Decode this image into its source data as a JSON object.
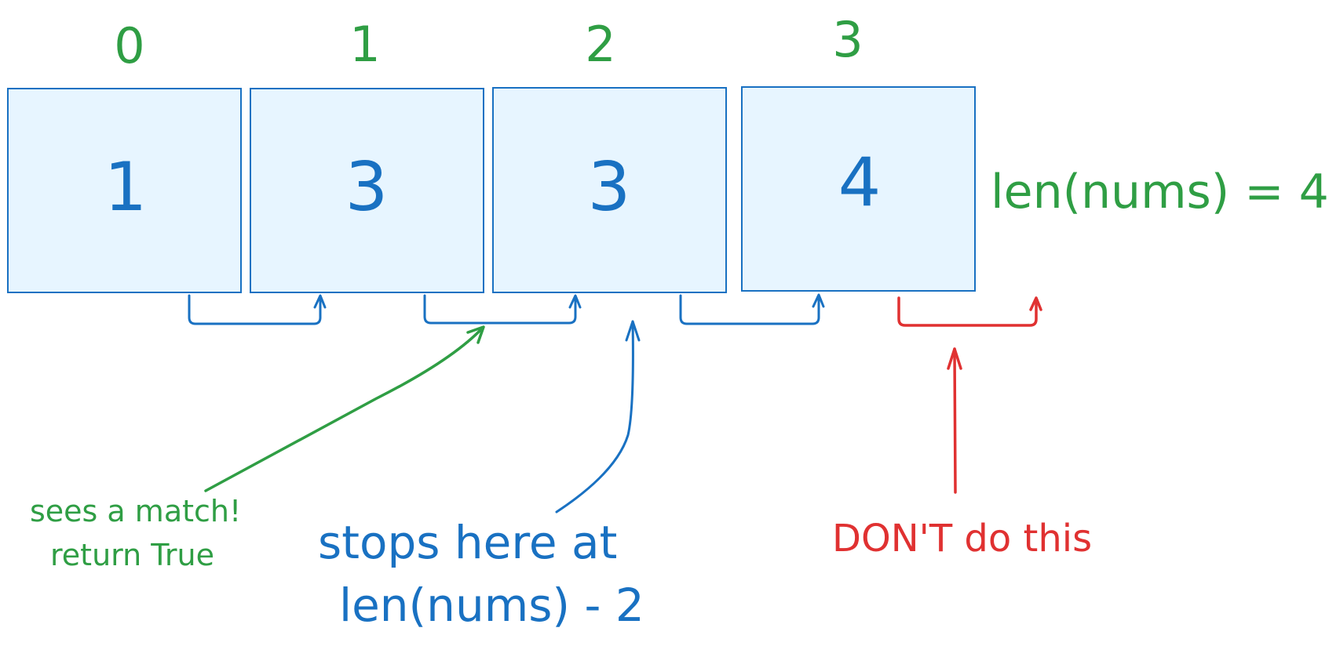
{
  "array": {
    "indices": [
      "0",
      "1",
      "2",
      "3"
    ],
    "values": [
      "1",
      "3",
      "3",
      "4"
    ],
    "length_label": "len(nums) = 4"
  },
  "annotations": {
    "match": {
      "line1": "sees a match!",
      "line2": "return True"
    },
    "stop": {
      "line1": "stops here at",
      "line2": "len(nums) - 2"
    },
    "dont": {
      "text": "DON'T do this"
    }
  },
  "colors": {
    "index": "#2f9e44",
    "value": "#1971c2",
    "box_fill": "#e7f5ff",
    "box_stroke": "#1971c2",
    "warning": "#e03131"
  }
}
